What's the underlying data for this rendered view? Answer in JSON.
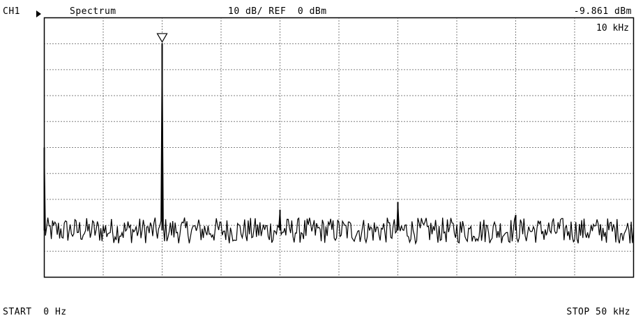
{
  "header": {
    "channel": "CH1",
    "mode": "Spectrum",
    "scale": "10 dB/ REF  0 dBm",
    "marker_value": "-9.861 dBm"
  },
  "marker_readout": "10 kHz",
  "footer": {
    "start": "START  0 Hz",
    "stop": "STOP 50 kHz"
  },
  "chart_data": {
    "type": "line",
    "title": "Spectrum",
    "xlabel": "",
    "ylabel": "",
    "x_unit": "Hz",
    "y_unit": "dBm",
    "xlim": [
      0,
      50000
    ],
    "ylim": [
      -100,
      0
    ],
    "grid": true,
    "grid_divisions": {
      "x": 10,
      "y": 10
    },
    "marker": {
      "x": 10000,
      "y": -9.861,
      "label": "10 kHz"
    },
    "series": [
      {
        "noise_floor_dbm": -82,
        "noise_amplitude_db": 5,
        "peaks": [
          {
            "x": 0,
            "y": -50
          },
          {
            "x": 10000,
            "y": -9.861
          },
          {
            "x": 20000,
            "y": -74
          },
          {
            "x": 30000,
            "y": -71
          },
          {
            "x": 40000,
            "y": -76
          }
        ]
      }
    ]
  }
}
